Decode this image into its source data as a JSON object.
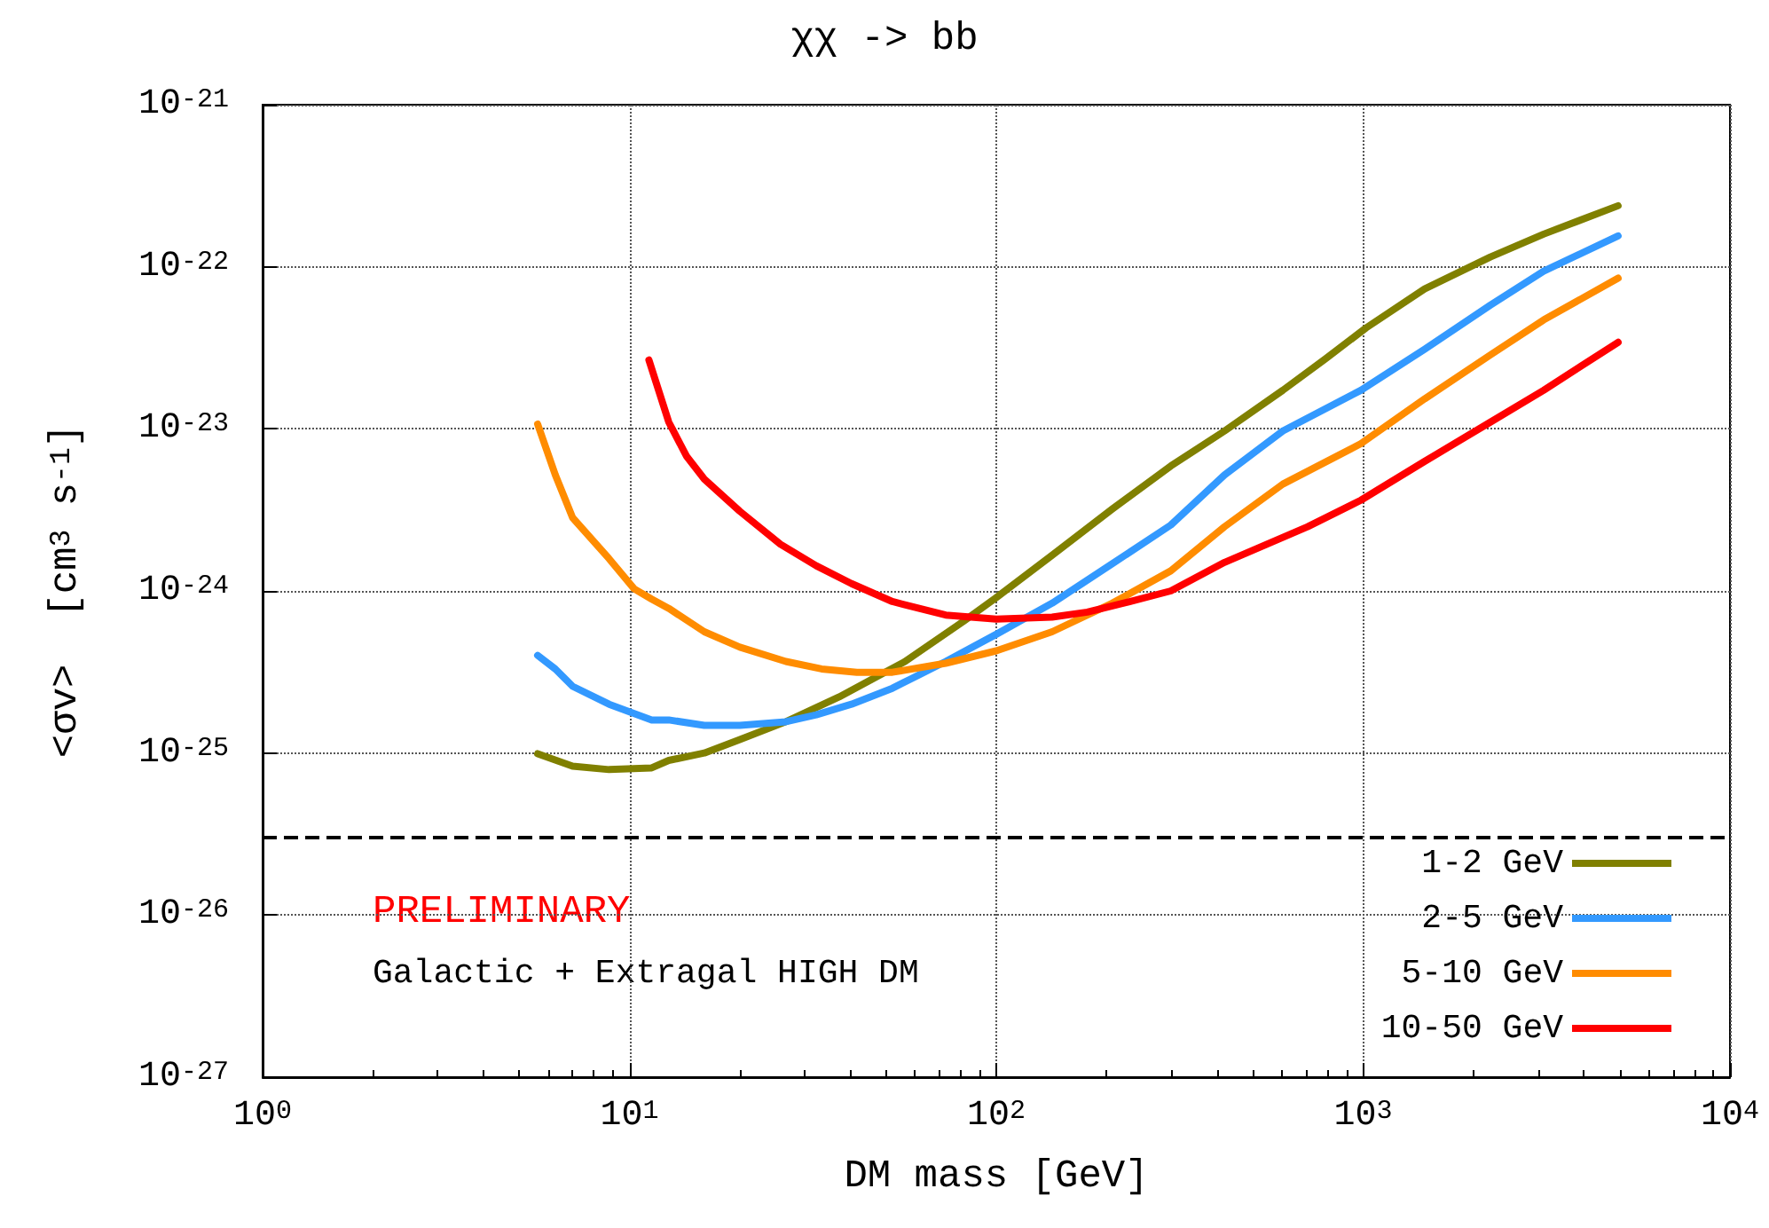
{
  "chart_data": {
    "type": "line",
    "title": "χχ -> bb",
    "xlabel": "DM mass [GeV]",
    "ylabel": "<σv>  [cm$^{3}$ s$^{-1}$]",
    "annotations": [
      "PRELIMINARY",
      "Galactic + Extragal HIGH DM"
    ],
    "log": "xy",
    "grid": true,
    "legend": "bottom right",
    "marker": "none",
    "line_style": "solid",
    "xlim": [
      1,
      10000
    ],
    "xticks": [
      {
        "value": 1,
        "label": "10$^{0}$"
      },
      {
        "value": 10,
        "label": "10$^{1}$"
      },
      {
        "value": 100,
        "label": "10$^{2}$"
      },
      {
        "value": 1000,
        "label": "10$^{3}$"
      },
      {
        "value": 10000,
        "label": "10$^{4}$"
      }
    ],
    "ylim": [
      1e-27,
      1e-21
    ],
    "yticks": [
      {
        "value": 1e-27,
        "label": "10$^{-27}$"
      },
      {
        "value": 1e-26,
        "label": "10$^{-26}$"
      },
      {
        "value": 1e-25,
        "label": "10$^{-25}$"
      },
      {
        "value": 1e-24,
        "label": "10$^{-24}$"
      },
      {
        "value": 1e-23,
        "label": "10$^{-23}$"
      },
      {
        "value": 1e-22,
        "label": "10$^{-22}$"
      },
      {
        "value": 1e-21,
        "label": "10$^{-21}$"
      }
    ],
    "ref_lines": [
      {
        "axis": "y",
        "value": 3e-26,
        "color": "#000000",
        "line_style": "dashed"
      }
    ],
    "series": [
      {
        "name": "1-2 GeV",
        "color": "#808000",
        "x": [
          5.62,
          7.0,
          8.8,
          11.5,
          12.8,
          16.0,
          20.0,
          26.7,
          37.3,
          56.4,
          81.4,
          100,
          142,
          207,
          299,
          419,
          604,
          789,
          1019,
          1471,
          2223,
          3105,
          4955
        ],
        "values": [
          9.9e-26,
          8.3e-26,
          7.9e-26,
          8.1e-26,
          9e-26,
          1e-25,
          1.21e-25,
          1.56e-25,
          2.22e-25,
          3.67e-25,
          6.5e-25,
          9.1e-25,
          1.66e-24,
          3.2e-24,
          5.9e-24,
          9.7e-24,
          1.73e-23,
          2.7e-23,
          4.2e-23,
          7.3e-23,
          1.15e-22,
          1.59e-22,
          2.38e-22
        ]
      },
      {
        "name": "2-5 GeV",
        "color": "#3399ff",
        "x": [
          5.62,
          6.28,
          7.0,
          8.8,
          11.5,
          12.8,
          16.0,
          20.0,
          26.7,
          32.3,
          40.3,
          52.1,
          72.8,
          100,
          142,
          207,
          299,
          419,
          604,
          986,
          1471,
          2223,
          3105,
          4955
        ],
        "values": [
          4e-25,
          3.3e-25,
          2.58e-25,
          2e-25,
          1.6e-25,
          1.6e-25,
          1.48e-25,
          1.48e-25,
          1.56e-25,
          1.72e-25,
          2e-25,
          2.51e-25,
          3.67e-25,
          5.4e-25,
          8.4e-25,
          1.47e-24,
          2.55e-24,
          5.2e-24,
          9.7e-24,
          1.73e-23,
          3.1e-23,
          5.8e-23,
          9.4e-23,
          1.55e-22
        ]
      },
      {
        "name": "5-10 GeV",
        "color": "#ff8c00",
        "x": [
          5.62,
          6.28,
          7.0,
          8.8,
          10.3,
          11.5,
          12.8,
          16.0,
          20.0,
          26.7,
          33.4,
          41.7,
          52.1,
          72.8,
          100,
          142,
          207,
          299,
          419,
          604,
          986,
          1471,
          2223,
          3105,
          4955
        ],
        "values": [
          1.07e-23,
          5.2e-24,
          2.83e-24,
          1.58e-24,
          1.03e-24,
          8.9e-25,
          7.8e-25,
          5.6e-25,
          4.5e-25,
          3.67e-25,
          3.3e-25,
          3.15e-25,
          3.15e-25,
          3.58e-25,
          4.27e-25,
          5.6e-25,
          8.4e-25,
          1.33e-24,
          2.49e-24,
          4.56e-24,
          8.1e-24,
          1.53e-23,
          2.86e-23,
          4.7e-23,
          8.5e-23
        ]
      },
      {
        "name": "10-50 GeV",
        "color": "#ff0000",
        "x": [
          11.3,
          12.8,
          14.3,
          16.0,
          20.0,
          25.8,
          32.3,
          40.3,
          52.1,
          72.8,
          100,
          142,
          177,
          232,
          299,
          419,
          706,
          986,
          1471,
          2223,
          3105,
          4955
        ],
        "values": [
          2.66e-23,
          1.1e-23,
          6.8e-24,
          4.9e-24,
          3.1e-24,
          1.94e-24,
          1.43e-24,
          1.11e-24,
          8.6e-25,
          7.1e-25,
          6.7e-25,
          6.9e-25,
          7.4e-25,
          8.6e-25,
          1e-24,
          1.5e-24,
          2.49e-24,
          3.63e-24,
          6.3e-24,
          1.1e-23,
          1.73e-23,
          3.42e-23
        ]
      }
    ]
  }
}
